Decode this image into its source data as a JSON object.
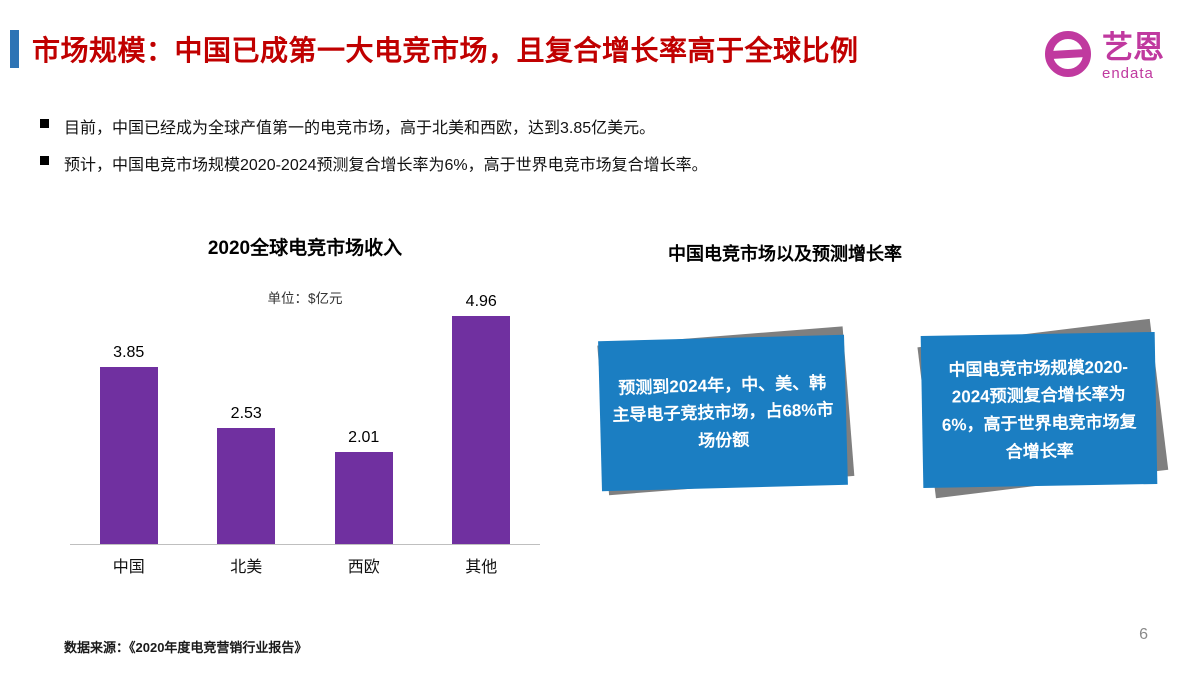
{
  "header": {
    "title": "市场规模：中国已成第一大电竞市场，且复合增长率高于全球比例"
  },
  "logo": {
    "cn": "艺恩",
    "en": "endata"
  },
  "bullets": [
    "目前，中国已经成为全球产值第一的电竞市场，高于北美和西欧，达到3.85亿美元。",
    "预计，中国电竞市场规模2020-2024预测复合增长率为6%，高于世界电竞市场复合增长率。"
  ],
  "chart_data": {
    "type": "bar",
    "title": "2020全球电竞市场收入",
    "unit_label": "单位：$亿元",
    "categories": [
      "中国",
      "北美",
      "西欧",
      "其他"
    ],
    "values": [
      3.85,
      2.53,
      2.01,
      4.96
    ],
    "bar_color": "#7030A0",
    "ylim": [
      0,
      5.2
    ],
    "grid": false,
    "legend": false
  },
  "right_panel": {
    "title": "中国电竞市场以及预测增长率",
    "cards": [
      {
        "text": "预测到2024年，中、美、韩主导电子竞技市场，占68%市场份额"
      },
      {
        "text": "中国电竞市场规模2020-2024预测复合增长率为6%，高于世界电竞市场复合增长率"
      }
    ]
  },
  "footer": {
    "source": "数据来源：《2020年度电竞营销行业报告》",
    "page_number": "6"
  },
  "colors": {
    "title_red": "#C00000",
    "accent_blue": "#2E74B5",
    "bar_purple": "#7030A0",
    "card_blue": "#1B7EC2",
    "shadow_gray": "#7F7F7F",
    "logo_magenta": "#C0399F"
  }
}
